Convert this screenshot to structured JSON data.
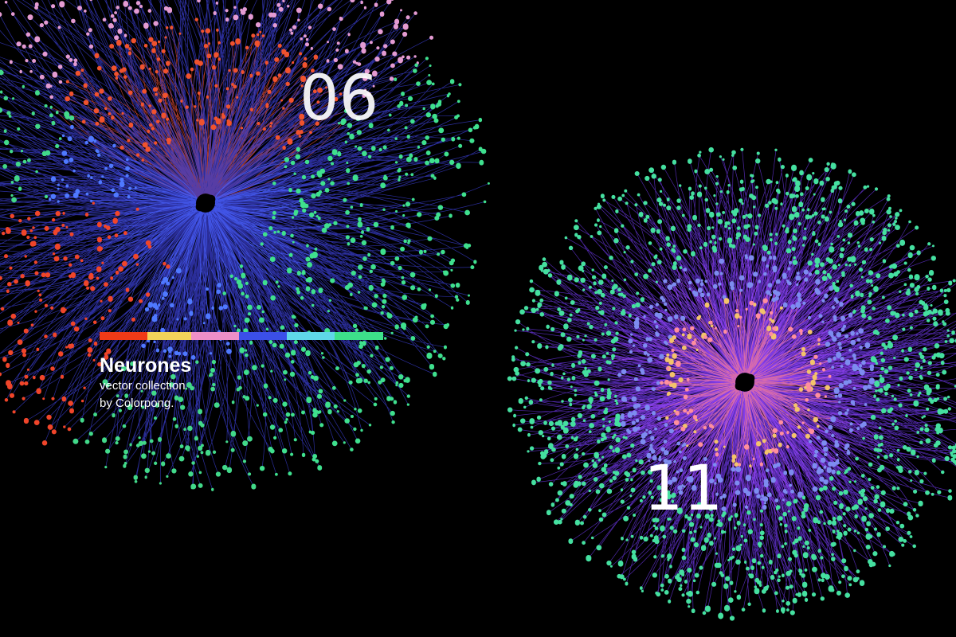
{
  "collection": {
    "title": "Neurones",
    "subtitle": "vector collection",
    "author": "by Colorpong."
  },
  "badges": [
    "06",
    "11"
  ]
}
